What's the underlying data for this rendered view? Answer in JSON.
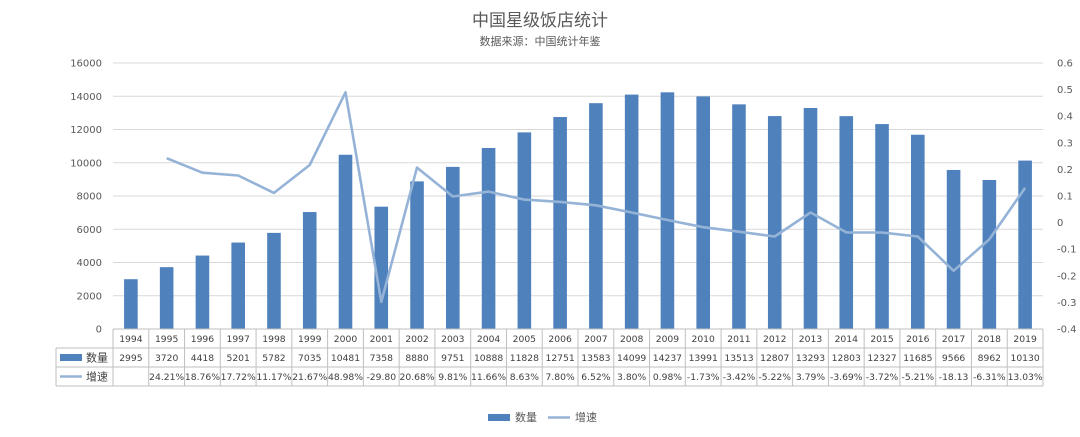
{
  "chart_data": {
    "type": "bar",
    "title": "中国星级饭店统计",
    "subtitle": "数据来源：中国统计年鉴",
    "categories": [
      "1994",
      "1995",
      "1996",
      "1997",
      "1998",
      "1999",
      "2000",
      "2001",
      "2002",
      "2003",
      "2004",
      "2005",
      "2006",
      "2007",
      "2008",
      "2009",
      "2010",
      "2011",
      "2012",
      "2013",
      "2014",
      "2015",
      "2016",
      "2017",
      "2018",
      "2019"
    ],
    "series": [
      {
        "name": "数量",
        "type": "bar",
        "axis": "left",
        "color": "#4f81bd",
        "values": [
          2995,
          3720,
          4418,
          5201,
          5782,
          7035,
          10481,
          7358,
          8880,
          9751,
          10888,
          11828,
          12751,
          13583,
          14099,
          14237,
          13991,
          13513,
          12807,
          13293,
          12803,
          12327,
          11685,
          9566,
          8962,
          10130
        ],
        "labels": [
          "2995",
          "3720",
          "4418",
          "5201",
          "5782",
          "7035",
          "10481",
          "7358",
          "8880",
          "9751",
          "10888",
          "11828",
          "12751",
          "13583",
          "14099",
          "14237",
          "13991",
          "13513",
          "12807",
          "13293",
          "12803",
          "12327",
          "11685",
          "9566",
          "8962",
          "10130"
        ]
      },
      {
        "name": "增速",
        "type": "line",
        "axis": "right",
        "color": "#95b3d7",
        "values": [
          null,
          0.2421,
          0.1876,
          0.1772,
          0.1117,
          0.2167,
          0.4898,
          -0.298,
          0.2068,
          0.0981,
          0.1166,
          0.0863,
          0.078,
          0.0652,
          0.038,
          0.0098,
          -0.0173,
          -0.0342,
          -0.0522,
          0.0379,
          -0.0369,
          -0.0372,
          -0.0521,
          -0.1813,
          -0.0631,
          0.1303
        ],
        "labels": [
          "",
          "24.21%",
          "18.76%",
          "17.72%",
          "11.17%",
          "21.67%",
          "48.98%",
          "-29.80",
          "20.68%",
          "9.81%",
          "11.66%",
          "8.63%",
          "7.80%",
          "6.52%",
          "3.80%",
          "0.98%",
          "-1.73%",
          "-3.42%",
          "-5.22%",
          "3.79%",
          "-3.69%",
          "-3.72%",
          "-5.21%",
          "-18.13",
          "-6.31%",
          "13.03%"
        ]
      }
    ],
    "y_left": {
      "min": 0,
      "max": 16000,
      "ticks": [
        "0",
        "2000",
        "4000",
        "6000",
        "8000",
        "10000",
        "12000",
        "14000",
        "16000"
      ]
    },
    "y_right": {
      "min": -0.4,
      "max": 0.6,
      "ticks": [
        "-0.4",
        "-0.3",
        "-0.2",
        "-0.1",
        "0",
        "0.1",
        "0.2",
        "0.3",
        "0.4",
        "0.5",
        "0.6"
      ]
    },
    "grid": true,
    "legend_position": "bottom",
    "data_table": true
  }
}
